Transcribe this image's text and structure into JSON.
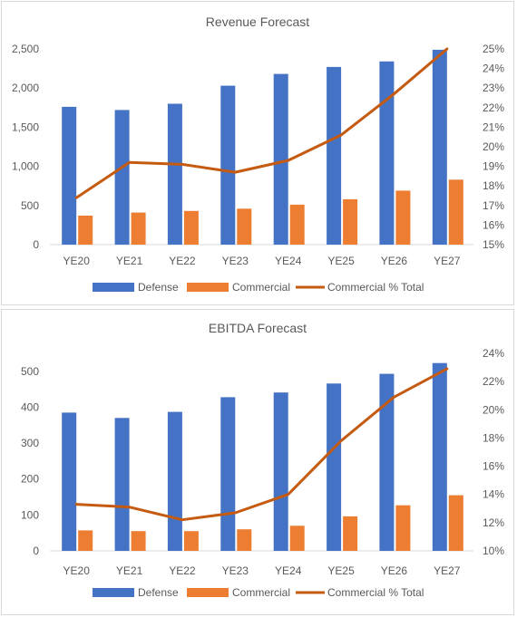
{
  "chart_data": [
    {
      "type": "bar",
      "title": "Revenue Forecast",
      "categories": [
        "YE20",
        "YE21",
        "YE22",
        "YE23",
        "YE24",
        "YE25",
        "YE26",
        "YE27"
      ],
      "series": [
        {
          "name": "Defense",
          "kind": "bar",
          "axis": "left",
          "color": "#4472C4",
          "values": [
            1760,
            1720,
            1800,
            2030,
            2180,
            2270,
            2340,
            2490
          ]
        },
        {
          "name": "Commercial",
          "kind": "bar",
          "axis": "left",
          "color": "#ED7D31",
          "values": [
            370,
            410,
            430,
            460,
            510,
            580,
            690,
            830
          ]
        },
        {
          "name": "Commercial % Total",
          "kind": "line",
          "axis": "right",
          "color": "#C55A11",
          "values": [
            0.174,
            0.192,
            0.191,
            0.187,
            0.193,
            0.206,
            0.227,
            0.25
          ]
        }
      ],
      "y_left": {
        "min": 0,
        "max": 2500,
        "ticks": [
          "0",
          "500",
          "1,000",
          "1,500",
          "2,000",
          "2,500"
        ]
      },
      "y_right": {
        "min": 0.15,
        "max": 0.25,
        "ticks": [
          "15%",
          "16%",
          "17%",
          "18%",
          "19%",
          "20%",
          "21%",
          "22%",
          "23%",
          "24%",
          "25%"
        ]
      },
      "grid": false,
      "legend": "bottom"
    },
    {
      "type": "bar",
      "title": "EBITDA Forecast",
      "categories": [
        "YE20",
        "YE21",
        "YE22",
        "YE23",
        "YE24",
        "YE25",
        "YE26",
        "YE27"
      ],
      "series": [
        {
          "name": "Defense",
          "kind": "bar",
          "axis": "left",
          "color": "#4472C4",
          "values": [
            385,
            370,
            387,
            428,
            441,
            466,
            493,
            523
          ]
        },
        {
          "name": "Commercial",
          "kind": "bar",
          "axis": "left",
          "color": "#ED7D31",
          "values": [
            57,
            55,
            55,
            60,
            70,
            96,
            127,
            155
          ]
        },
        {
          "name": "Commercial % Total",
          "kind": "line",
          "axis": "right",
          "color": "#C55A11",
          "values": [
            0.133,
            0.131,
            0.122,
            0.127,
            0.14,
            0.178,
            0.209,
            0.229
          ]
        }
      ],
      "y_left": {
        "min": 0,
        "max": 550,
        "ticks": [
          "0",
          "100",
          "200",
          "300",
          "400",
          "500"
        ]
      },
      "y_right": {
        "min": 0.1,
        "max": 0.24,
        "ticks": [
          "10%",
          "12%",
          "14%",
          "16%",
          "18%",
          "20%",
          "22%",
          "24%"
        ]
      },
      "grid": false,
      "legend": "bottom"
    }
  ]
}
